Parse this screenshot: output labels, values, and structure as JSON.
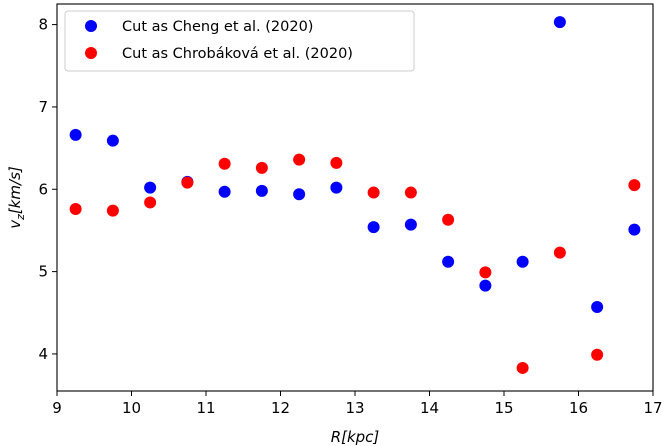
{
  "chart_data": {
    "type": "scatter",
    "xlabel": "R[kpc]",
    "ylabel": "v_z[km/s]",
    "xlim": [
      9,
      17
    ],
    "ylim": [
      3.55,
      8.25
    ],
    "xticks": [
      9,
      10,
      11,
      12,
      13,
      14,
      15,
      16,
      17
    ],
    "yticks": [
      4,
      5,
      6,
      7,
      8
    ],
    "grid": false,
    "legend_position": "top-left",
    "series": [
      {
        "name": "Cut as Cheng et al. (2020)",
        "color": "#0000ff",
        "points": [
          [
            9.25,
            6.66
          ],
          [
            9.75,
            6.59
          ],
          [
            10.25,
            6.02
          ],
          [
            10.75,
            6.09
          ],
          [
            11.25,
            5.97
          ],
          [
            11.75,
            5.98
          ],
          [
            12.25,
            5.94
          ],
          [
            12.75,
            6.02
          ],
          [
            13.25,
            5.54
          ],
          [
            13.75,
            5.57
          ],
          [
            14.25,
            5.12
          ],
          [
            14.75,
            4.83
          ],
          [
            15.25,
            5.12
          ],
          [
            15.75,
            8.03
          ],
          [
            16.25,
            4.57
          ],
          [
            16.75,
            5.51
          ]
        ]
      },
      {
        "name": "Cut as Chrobáková et al. (2020)",
        "color": "#ff0000",
        "points": [
          [
            9.25,
            5.76
          ],
          [
            9.75,
            5.74
          ],
          [
            10.25,
            5.84
          ],
          [
            10.75,
            6.08
          ],
          [
            11.25,
            6.31
          ],
          [
            11.75,
            6.26
          ],
          [
            12.25,
            6.36
          ],
          [
            12.75,
            6.32
          ],
          [
            13.25,
            5.96
          ],
          [
            13.75,
            5.96
          ],
          [
            14.25,
            5.63
          ],
          [
            14.75,
            4.99
          ],
          [
            15.25,
            3.83
          ],
          [
            15.75,
            5.23
          ],
          [
            16.25,
            3.99
          ],
          [
            16.75,
            6.05
          ]
        ]
      }
    ]
  }
}
